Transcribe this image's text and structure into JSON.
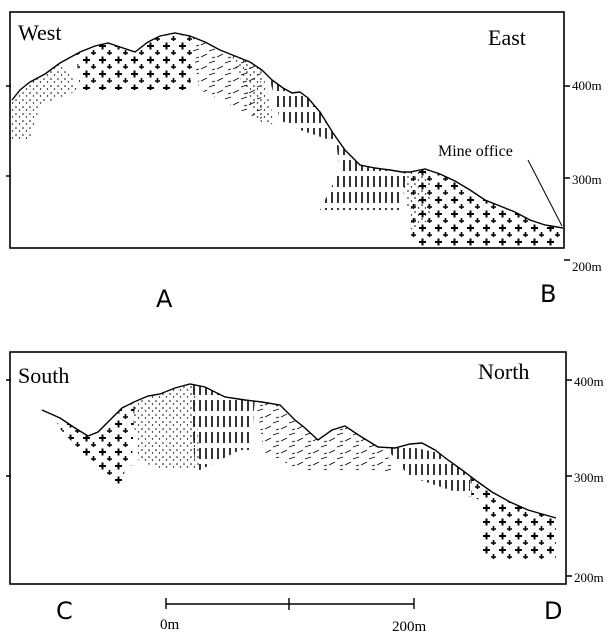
{
  "sections": [
    {
      "id": "A-B",
      "left_direction": "West",
      "right_direction": "East",
      "left_end": "A",
      "right_end": "B",
      "annotation": "Mine office",
      "elevation_ticks": [
        "400m",
        "300m",
        "200m"
      ]
    },
    {
      "id": "C-D",
      "left_direction": "South",
      "right_direction": "North",
      "left_end": "C",
      "right_end": "D",
      "elevation_ticks": [
        "400m",
        "300m",
        "200m"
      ]
    }
  ],
  "scale_bar": {
    "start": "0m",
    "end": "200m"
  }
}
